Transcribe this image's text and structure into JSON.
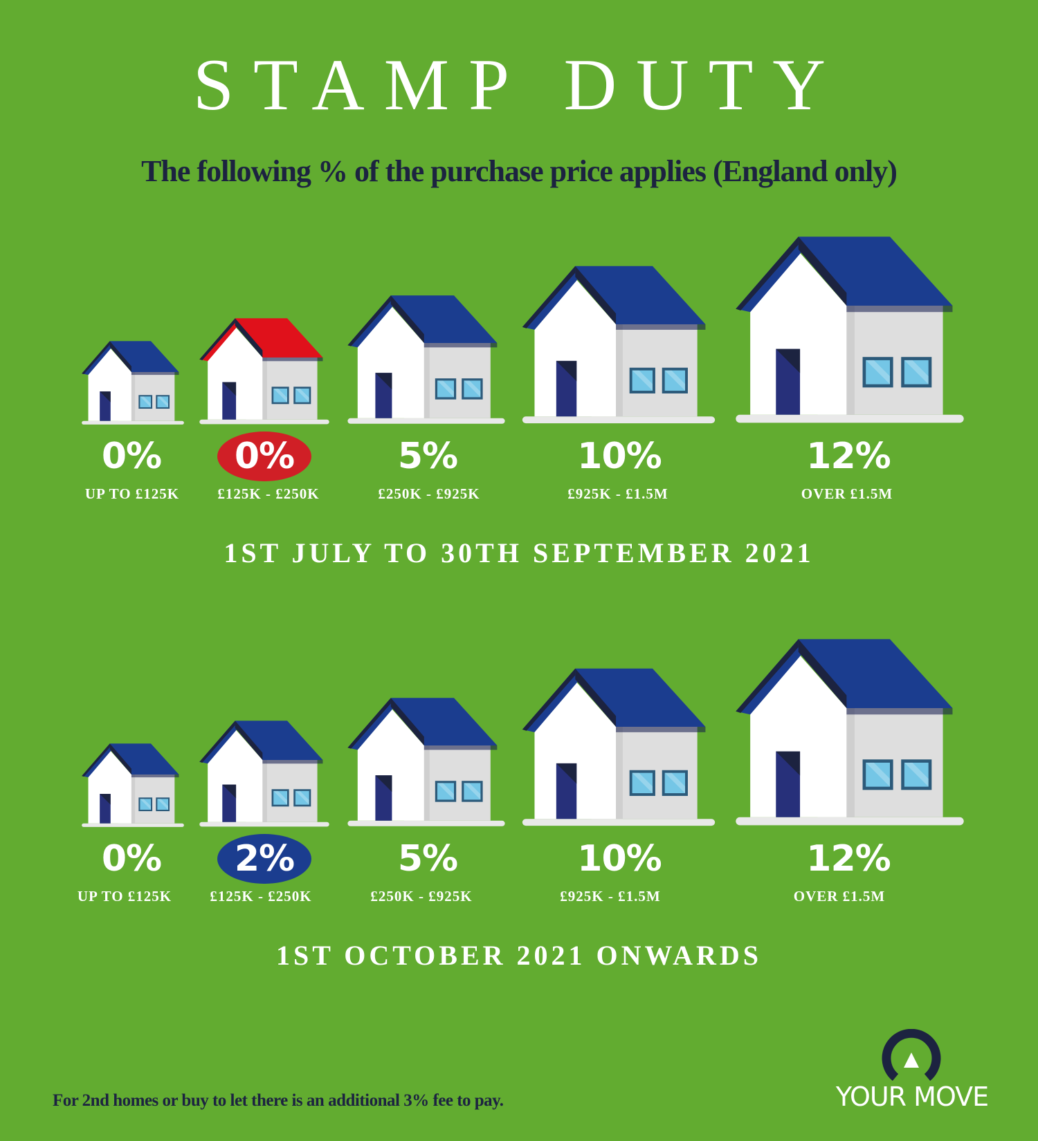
{
  "title": "STAMP DUTY",
  "subtitle": "The following % of the purchase price applies (England only)",
  "colors": {
    "background": "#62ac30",
    "roof": "#1b3d8f",
    "roof_highlight": "#e0111b",
    "wall": "#ffffff",
    "wall_side": "#dedede",
    "door": "#27307a",
    "window": "#74c6e6",
    "rate_highlight_first": "#d01f26",
    "rate_highlight_second": "#1b3d8f"
  },
  "sections": [
    {
      "period": "1ST JULY TO 30TH SEPTEMBER 2021",
      "brackets": [
        {
          "rate": "0%",
          "band": "UP TO £125K"
        },
        {
          "rate": "0%",
          "band": "£125K - £250K",
          "highlight": "red"
        },
        {
          "rate": "5%",
          "band": "£250K - £925K"
        },
        {
          "rate": "10%",
          "band": "£925K - £1.5M"
        },
        {
          "rate": "12%",
          "band": "OVER £1.5M"
        }
      ]
    },
    {
      "period": "1ST OCTOBER 2021 ONWARDS",
      "brackets": [
        {
          "rate": "0%",
          "band": "UP TO £125K"
        },
        {
          "rate": "2%",
          "band": "£125K - £250K",
          "highlight": "blue"
        },
        {
          "rate": "5%",
          "band": "£250K - £925K"
        },
        {
          "rate": "10%",
          "band": "£925K - £1.5M"
        },
        {
          "rate": "12%",
          "band": "OVER £1.5M"
        }
      ]
    }
  ],
  "footnote": "For 2nd homes or buy to let there is an additional 3% fee to pay.",
  "logo": {
    "text": "YOUR MOVE"
  }
}
